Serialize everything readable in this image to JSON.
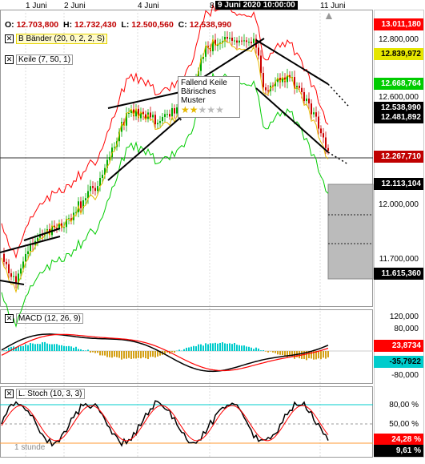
{
  "header": {
    "timeline": [
      "1 Juni",
      "2 Juni",
      "4 Juni",
      "8",
      "11 Juni"
    ],
    "current_time": "9 Juni 2020 10:00:00",
    "ohlc": {
      "o_label": "O:",
      "o_value": "12.703,800",
      "h_label": "H:",
      "h_value": "12.732,430",
      "l_label": "L:",
      "l_value": "12.500,560",
      "c_label": "C:",
      "c_value": "12.538,990"
    }
  },
  "indicators": {
    "bollinger": "B Bänder (20, 0, 2, 2, S)",
    "wedge": "Keile (7, 50, 1)",
    "macd": "MACD (12, 26, 9)",
    "stoch": "L. Stoch (10, 3, 3)"
  },
  "tooltip": {
    "line1": "Fallend Keile",
    "line2": "Bärisches Muster",
    "stars_filled": 2,
    "stars_total": 5
  },
  "price_panel": {
    "boxes": [
      {
        "label": "13.011,180",
        "bg": "#ff0000",
        "fg": "#ffffff"
      },
      {
        "label": "12.839,972",
        "bg": "#e6e600",
        "fg": "#000000"
      },
      {
        "label": "12.668,764",
        "bg": "#00cc00",
        "fg": "#ffffff"
      },
      {
        "label": "12.538,990",
        "bg": "#000000",
        "fg": "#ffffff"
      },
      {
        "label": "12.481,892",
        "bg": "#000000",
        "fg": "#ffffff"
      },
      {
        "label": "12.267,710",
        "bg": "#c00000",
        "fg": "#ffffff"
      },
      {
        "label": "12.113,104",
        "bg": "#000000",
        "fg": "#ffffff"
      },
      {
        "label": "11.615,360",
        "bg": "#000000",
        "fg": "#ffffff"
      }
    ],
    "axis": [
      "12.800,000",
      "12.600,000",
      "12.000,000",
      "11.700,000"
    ]
  },
  "macd_panel": {
    "axis": [
      "120,000",
      "80,000",
      "-80,000"
    ],
    "boxes": [
      {
        "label": "23,8734",
        "bg": "#ff0000",
        "fg": "#ffffff"
      },
      {
        "label": "-35,7922",
        "bg": "#00cccc",
        "fg": "#000000"
      }
    ]
  },
  "stoch_panel": {
    "axis": [
      "80,00 %",
      "50,00 %"
    ],
    "boxes": [
      {
        "label": "24,28 %",
        "bg": "#ff0000",
        "fg": "#ffffff"
      },
      {
        "label": "9,61 %",
        "bg": "#000000",
        "fg": "#ffffff"
      }
    ]
  },
  "footer": {
    "interval": "1 stunde"
  },
  "colors": {
    "bull_candle": "#00aa00",
    "bear_candle": "#cc0000",
    "upper_band": "#ff0000",
    "middle_band": "#e6b800",
    "lower_band": "#00cc00",
    "macd_line": "#000000",
    "signal_line": "#ff0000",
    "hist_pos": "#00cccc",
    "hist_neg": "#d4a017",
    "stoch_k": "#000000",
    "stoch_d": "#ff0000"
  }
}
